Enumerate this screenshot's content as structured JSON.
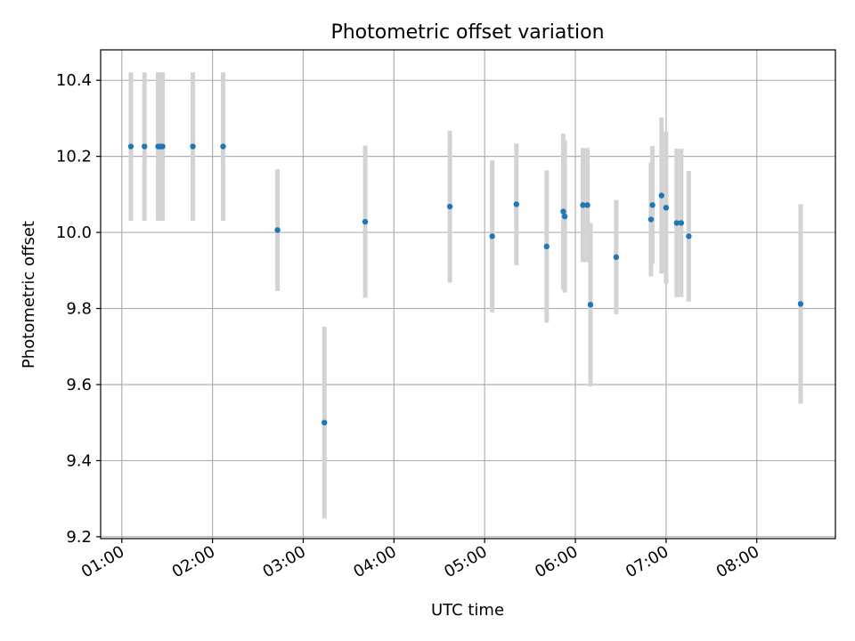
{
  "chart_data": {
    "type": "scatter",
    "title": "Photometric offset variation",
    "xlabel": "UTC time",
    "ylabel": "Photometric offset",
    "xlim": [
      "00:46",
      "08:52"
    ],
    "ylim": [
      9.195,
      10.48
    ],
    "grid": true,
    "xticks": [
      "01:00",
      "02:00",
      "03:00",
      "04:00",
      "05:00",
      "06:00",
      "07:00",
      "08:00"
    ],
    "yticks": [
      9.2,
      9.4,
      9.6,
      9.8,
      10.0,
      10.2,
      10.4
    ],
    "yticks_labels": [
      "9.2",
      "9.4",
      "9.6",
      "9.8",
      "10.0",
      "10.2",
      "10.4"
    ],
    "colors": {
      "point": "#1f77b4",
      "errorbar": "#d3d3d3",
      "grid": "#b0b0b0"
    },
    "points": [
      {
        "t": "01:06",
        "y": 10.226,
        "err": 0.195
      },
      {
        "t": "01:15",
        "y": 10.226,
        "err": 0.195
      },
      {
        "t": "01:24",
        "y": 10.226,
        "err": 0.195
      },
      {
        "t": "01:25",
        "y": 10.226,
        "err": 0.195
      },
      {
        "t": "01:26",
        "y": 10.226,
        "err": 0.195
      },
      {
        "t": "01:27",
        "y": 10.226,
        "err": 0.195
      },
      {
        "t": "01:47",
        "y": 10.226,
        "err": 0.195
      },
      {
        "t": "02:07",
        "y": 10.226,
        "err": 0.195
      },
      {
        "t": "02:43",
        "y": 10.006,
        "err": 0.16
      },
      {
        "t": "03:14",
        "y": 9.5,
        "err": 0.252
      },
      {
        "t": "03:41",
        "y": 10.028,
        "err": 0.2
      },
      {
        "t": "04:37",
        "y": 10.068,
        "err": 0.2
      },
      {
        "t": "05:05",
        "y": 9.99,
        "err": 0.2
      },
      {
        "t": "05:21",
        "y": 10.074,
        "err": 0.16
      },
      {
        "t": "05:41",
        "y": 9.963,
        "err": 0.2
      },
      {
        "t": "05:52",
        "y": 10.055,
        "err": 0.205
      },
      {
        "t": "05:53",
        "y": 10.042,
        "err": 0.2
      },
      {
        "t": "06:05",
        "y": 10.072,
        "err": 0.15
      },
      {
        "t": "06:08",
        "y": 10.072,
        "err": 0.15
      },
      {
        "t": "06:10",
        "y": 9.81,
        "err": 0.215
      },
      {
        "t": "06:27",
        "y": 9.935,
        "err": 0.15
      },
      {
        "t": "06:50",
        "y": 10.034,
        "err": 0.15
      },
      {
        "t": "06:51",
        "y": 10.072,
        "err": 0.155
      },
      {
        "t": "06:57",
        "y": 10.097,
        "err": 0.205
      },
      {
        "t": "07:00",
        "y": 10.065,
        "err": 0.2
      },
      {
        "t": "07:07",
        "y": 10.025,
        "err": 0.195
      },
      {
        "t": "07:10",
        "y": 10.025,
        "err": 0.195
      },
      {
        "t": "07:15",
        "y": 9.99,
        "err": 0.172
      },
      {
        "t": "08:29",
        "y": 9.812,
        "err": 0.262
      }
    ]
  }
}
